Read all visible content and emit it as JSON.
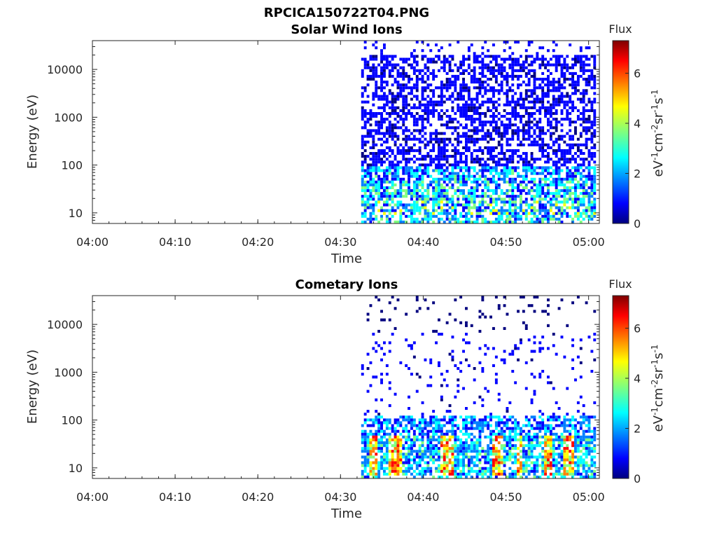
{
  "figure_title": "RPCICA150722T04.PNG",
  "colormap": [
    "#00007f",
    "#0000ff",
    "#007fff",
    "#00ffff",
    "#7fff7f",
    "#ffff00",
    "#ff7f00",
    "#ff0000",
    "#7f0000"
  ],
  "chart_data": [
    {
      "type": "heatmap",
      "title": "Solar Wind Ions",
      "xlabel": "Time",
      "ylabel": "Energy (eV)",
      "x_ticks": [
        "04:00",
        "04:10",
        "04:20",
        "04:30",
        "04:40",
        "04:50",
        "05:00"
      ],
      "x_range_minutes": [
        0,
        61.3
      ],
      "y_scale": "log",
      "y_ticks": [
        "10",
        "100",
        "1000",
        "10000"
      ],
      "y_range": [
        6,
        40000
      ],
      "data_start_minute": 32.5,
      "colorbar": {
        "label": "Flux",
        "units": "eV-1cm-2sr-1s-1",
        "range": [
          0,
          7.3
        ],
        "ticks": [
          "0",
          "2",
          "4",
          "6"
        ]
      }
    },
    {
      "type": "heatmap",
      "title": "Cometary Ions",
      "xlabel": "Time",
      "ylabel": "Energy (eV)",
      "x_ticks": [
        "04:00",
        "04:10",
        "04:20",
        "04:30",
        "04:40",
        "04:50",
        "05:00"
      ],
      "x_range_minutes": [
        0,
        61.3
      ],
      "y_scale": "log",
      "y_ticks": [
        "10",
        "100",
        "1000",
        "10000"
      ],
      "y_range": [
        6,
        40000
      ],
      "data_start_minute": 32.5,
      "colorbar": {
        "label": "Flux",
        "units": "eV-1cm-2sr-1s-1",
        "range": [
          0,
          7.3
        ],
        "ticks": [
          "0",
          "2",
          "4",
          "6"
        ]
      }
    }
  ]
}
